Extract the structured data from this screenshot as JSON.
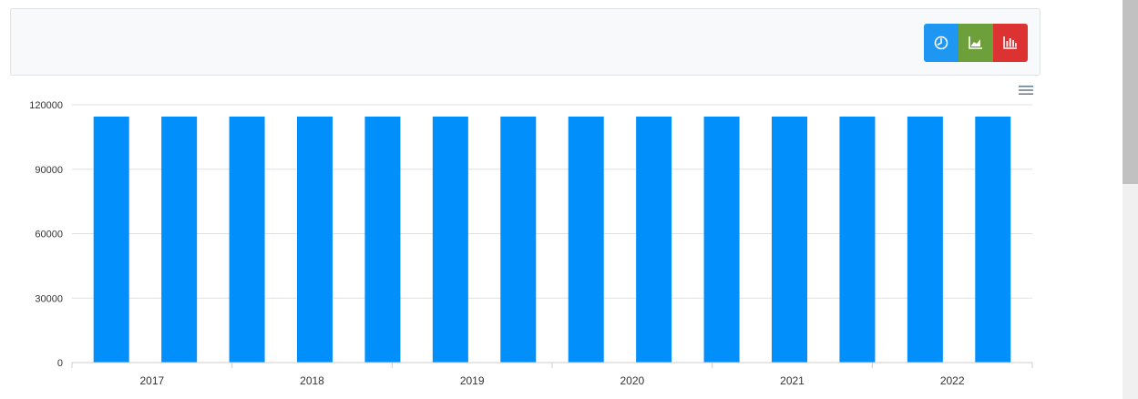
{
  "toolbar": {
    "buttons": [
      {
        "name": "pie-chart-button",
        "icon": "clock-pie-icon",
        "color": "#1e97f3"
      },
      {
        "name": "line-chart-button",
        "icon": "area-chart-icon",
        "color": "#6d9f3a"
      },
      {
        "name": "bar-chart-button",
        "icon": "bar-chart-icon",
        "color": "#dc3232"
      }
    ]
  },
  "chart_menu": {
    "icon": "hamburger-menu-icon"
  },
  "colors": {
    "bar": "#008ffb",
    "grid": "#e0e0e0",
    "axis": "#cccccc"
  },
  "chart_data": {
    "type": "bar",
    "title": "",
    "xlabel": "",
    "ylabel": "",
    "ylim": [
      0,
      120000
    ],
    "y_ticks": [
      "0",
      "30000",
      "60000",
      "90000",
      "120000"
    ],
    "x_tick_labels": [
      "2017",
      "2018",
      "2019",
      "2020",
      "2021",
      "2022"
    ],
    "bar_count": 14,
    "series": [
      {
        "values": [
          114500,
          114500,
          114500,
          114500,
          114500,
          114500,
          114500,
          114500,
          114500,
          114500,
          114500,
          114500,
          114500,
          114500
        ]
      }
    ],
    "grid": true,
    "legend": "none"
  }
}
